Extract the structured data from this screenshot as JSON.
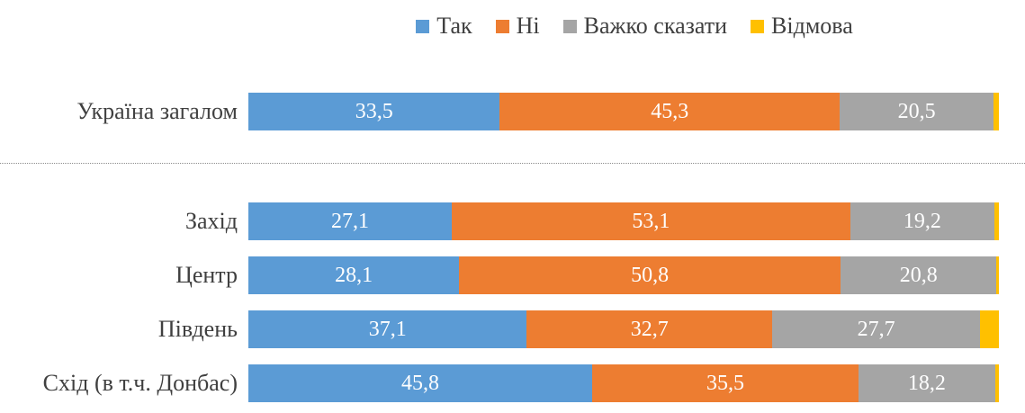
{
  "legend": {
    "items": [
      {
        "name": "tak",
        "label": "Так",
        "color": "#5B9BD5"
      },
      {
        "name": "ni",
        "label": "Ні",
        "color": "#ED7D31"
      },
      {
        "name": "vazhko-skazaty",
        "label": "Важко сказати",
        "color": "#A5A5A5"
      },
      {
        "name": "vidmova",
        "label": "Відмова",
        "color": "#FFC000"
      }
    ]
  },
  "chart_data": {
    "type": "bar",
    "orientation": "horizontal",
    "stacked": true,
    "xlim": [
      0,
      100
    ],
    "grid": false,
    "legend_position": "top-center",
    "separator_after_category": "Україна загалом",
    "categories": [
      "Україна загалом",
      "Захід",
      "Центр",
      "Південь",
      "Схід (в т.ч. Донбас)"
    ],
    "series": [
      {
        "name": "Так",
        "color": "#5B9BD5",
        "values": [
          33.5,
          27.1,
          28.1,
          37.1,
          45.8
        ],
        "display_labels": [
          "33,5",
          "27,1",
          "28,1",
          "37,1",
          "45,8"
        ]
      },
      {
        "name": "Ні",
        "color": "#ED7D31",
        "values": [
          45.3,
          53.1,
          50.8,
          32.7,
          35.5
        ],
        "display_labels": [
          "45,3",
          "53,1",
          "50,8",
          "32,7",
          "35,5"
        ]
      },
      {
        "name": "Важко сказати",
        "color": "#A5A5A5",
        "values": [
          20.5,
          19.2,
          20.8,
          27.7,
          18.2
        ],
        "display_labels": [
          "20,5",
          "19,2",
          "20,8",
          "27,7",
          "18,2"
        ]
      },
      {
        "name": "Відмова",
        "color": "#FFC000",
        "values": [
          0.7,
          0.6,
          0.3,
          2.5,
          0.5
        ],
        "display_labels": [
          "",
          "",
          "",
          "",
          ""
        ]
      }
    ],
    "label_text_color": "#FFFFFF",
    "category_text_color": "#404040"
  },
  "layout": {
    "row_tops": [
      103,
      225,
      285,
      345,
      405
    ],
    "separator_top": 181
  }
}
